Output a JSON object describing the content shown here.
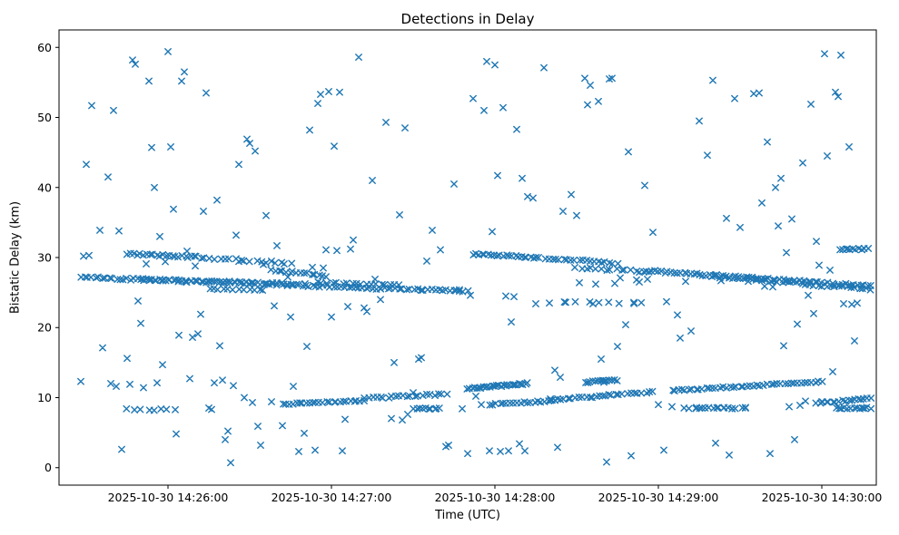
{
  "figure": {
    "title": "Detections in Delay",
    "xlabel": "Time (UTC)",
    "ylabel": "Bistatic Delay (km)"
  },
  "chart_data": {
    "type": "scatter",
    "title": "Detections in Delay",
    "xlabel": "Time (UTC)",
    "ylabel": "Bistatic Delay (km)",
    "marker": "x",
    "marker_color": "#1f77b4",
    "grid": false,
    "legend": "none",
    "x_axis": {
      "unit": "seconds from 2025-10-30 14:25:20 UTC (axis left edge)",
      "range_seconds": [
        0,
        300
      ],
      "ticks": [
        {
          "t": 40,
          "label": "2025-10-30 14:26:00"
        },
        {
          "t": 100,
          "label": "2025-10-30 14:27:00"
        },
        {
          "t": 160,
          "label": "2025-10-30 14:28:00"
        },
        {
          "t": 220,
          "label": "2025-10-30 14:29:00"
        },
        {
          "t": 280,
          "label": "2025-10-30 14:30:00"
        }
      ]
    },
    "y_axis": {
      "range": [
        -2.5,
        62.5
      ],
      "ticks": [
        0,
        10,
        20,
        30,
        40,
        50,
        60
      ]
    },
    "tracks_note": "dense detection streaks: [t_start,t_end,delay_start,delay_end,n_points,jitter_km]",
    "tracks": [
      [
        8,
        118,
        27.2,
        25.6,
        85,
        0.15
      ],
      [
        118,
        150,
        25.6,
        25.2,
        25,
        0.12
      ],
      [
        30,
        90,
        26.9,
        26.2,
        30,
        0.12
      ],
      [
        95,
        125,
        26.4,
        26.0,
        18,
        0.12
      ],
      [
        25,
        50,
        30.5,
        30.1,
        22,
        0.15
      ],
      [
        50,
        85,
        30.0,
        29.2,
        20,
        0.2
      ],
      [
        55,
        75,
        25.5,
        25.4,
        12,
        0.08
      ],
      [
        78,
        98,
        28.2,
        27.4,
        16,
        0.15
      ],
      [
        82,
        112,
        9.1,
        9.5,
        25,
        0.1
      ],
      [
        112,
        142,
        9.9,
        10.5,
        22,
        0.12
      ],
      [
        25,
        42,
        8.3,
        8.3,
        8,
        0.15
      ],
      [
        130,
        140,
        8.45,
        8.45,
        10,
        0.08
      ],
      [
        152,
        175,
        30.5,
        30.0,
        22,
        0.12
      ],
      [
        178,
        205,
        29.9,
        29.2,
        20,
        0.15
      ],
      [
        190,
        215,
        28.6,
        28.0,
        15,
        0.2
      ],
      [
        215,
        298,
        28.1,
        25.9,
        70,
        0.15
      ],
      [
        240,
        298,
        27.3,
        25.5,
        40,
        0.2
      ],
      [
        185,
        215,
        23.6,
        23.5,
        8,
        0.1
      ],
      [
        150,
        172,
        11.3,
        12.0,
        28,
        0.12
      ],
      [
        158,
        182,
        9.0,
        9.6,
        20,
        0.12
      ],
      [
        180,
        200,
        9.7,
        10.2,
        16,
        0.1
      ],
      [
        193,
        205,
        12.2,
        12.5,
        14,
        0.1
      ],
      [
        200,
        218,
        10.3,
        10.8,
        14,
        0.1
      ],
      [
        225,
        280,
        11.0,
        12.3,
        45,
        0.1
      ],
      [
        230,
        252,
        8.5,
        8.5,
        14,
        0.1
      ],
      [
        278,
        298,
        9.2,
        9.9,
        18,
        0.1
      ],
      [
        285,
        298,
        8.5,
        8.5,
        12,
        0.1
      ],
      [
        287,
        297,
        31.2,
        31.2,
        10,
        0.1
      ]
    ],
    "points_note": "isolated detections: [t_seconds, delay_km]",
    "points": [
      [
        8,
        12.3
      ],
      [
        9,
        30.2
      ],
      [
        10,
        43.3
      ],
      [
        11,
        30.3
      ],
      [
        12,
        51.7
      ],
      [
        15,
        33.9
      ],
      [
        16,
        17.1
      ],
      [
        18,
        41.5
      ],
      [
        19,
        12.0
      ],
      [
        20,
        51.0
      ],
      [
        21,
        11.6
      ],
      [
        22,
        33.8
      ],
      [
        23,
        2.6
      ],
      [
        25,
        15.6
      ],
      [
        26,
        11.9
      ],
      [
        27,
        58.2
      ],
      [
        28,
        57.6
      ],
      [
        29,
        23.8
      ],
      [
        30,
        20.6
      ],
      [
        31,
        11.4
      ],
      [
        32,
        29.1
      ],
      [
        33,
        55.2
      ],
      [
        34,
        45.7
      ],
      [
        35,
        40.0
      ],
      [
        36,
        12.1
      ],
      [
        37,
        33.0
      ],
      [
        38,
        14.7
      ],
      [
        39,
        29.4
      ],
      [
        40,
        59.4
      ],
      [
        41,
        45.8
      ],
      [
        42,
        36.9
      ],
      [
        43,
        4.8
      ],
      [
        44,
        18.9
      ],
      [
        45,
        55.2
      ],
      [
        46,
        56.5
      ],
      [
        47,
        30.9
      ],
      [
        48,
        12.7
      ],
      [
        49,
        18.6
      ],
      [
        50,
        28.8
      ],
      [
        51,
        19.1
      ],
      [
        52,
        21.9
      ],
      [
        53,
        36.6
      ],
      [
        54,
        53.5
      ],
      [
        55,
        8.5
      ],
      [
        56,
        8.3
      ],
      [
        57,
        12.1
      ],
      [
        58,
        38.2
      ],
      [
        59,
        17.4
      ],
      [
        60,
        12.5
      ],
      [
        61,
        4.0
      ],
      [
        62,
        5.2
      ],
      [
        63,
        0.7
      ],
      [
        64,
        11.7
      ],
      [
        65,
        33.2
      ],
      [
        66,
        43.3
      ],
      [
        67,
        29.6
      ],
      [
        68,
        10.0
      ],
      [
        69,
        46.9
      ],
      [
        70,
        46.3
      ],
      [
        71,
        9.3
      ],
      [
        72,
        45.2
      ],
      [
        73,
        5.9
      ],
      [
        74,
        3.2
      ],
      [
        75,
        29.0
      ],
      [
        76,
        36.0
      ],
      [
        78,
        9.4
      ],
      [
        79,
        23.1
      ],
      [
        80,
        31.7
      ],
      [
        82,
        6.0
      ],
      [
        84,
        27.2
      ],
      [
        85,
        21.5
      ],
      [
        86,
        11.6
      ],
      [
        88,
        2.3
      ],
      [
        90,
        4.9
      ],
      [
        91,
        17.3
      ],
      [
        92,
        48.2
      ],
      [
        93,
        28.6
      ],
      [
        94,
        2.5
      ],
      [
        95,
        52.0
      ],
      [
        96,
        53.3
      ],
      [
        97,
        28.5
      ],
      [
        98,
        31.1
      ],
      [
        99,
        53.7
      ],
      [
        100,
        21.5
      ],
      [
        101,
        45.9
      ],
      [
        102,
        31.0
      ],
      [
        103,
        53.6
      ],
      [
        104,
        2.4
      ],
      [
        105,
        6.9
      ],
      [
        106,
        23.0
      ],
      [
        107,
        31.2
      ],
      [
        108,
        32.5
      ],
      [
        110,
        58.6
      ],
      [
        112,
        22.8
      ],
      [
        113,
        22.3
      ],
      [
        115,
        41.0
      ],
      [
        116,
        26.9
      ],
      [
        118,
        24.0
      ],
      [
        120,
        49.3
      ],
      [
        122,
        7.0
      ],
      [
        123,
        15.0
      ],
      [
        125,
        36.1
      ],
      [
        126,
        6.8
      ],
      [
        127,
        48.5
      ],
      [
        128,
        7.6
      ],
      [
        130,
        10.7
      ],
      [
        132,
        15.5
      ],
      [
        133,
        15.7
      ],
      [
        135,
        29.5
      ],
      [
        137,
        33.9
      ],
      [
        140,
        31.1
      ],
      [
        142,
        3.0
      ],
      [
        143,
        3.2
      ],
      [
        145,
        40.5
      ],
      [
        147,
        25.4
      ],
      [
        148,
        8.4
      ],
      [
        150,
        2.0
      ],
      [
        151,
        24.6
      ],
      [
        152,
        52.7
      ],
      [
        153,
        10.2
      ],
      [
        155,
        9.0
      ],
      [
        156,
        51.0
      ],
      [
        157,
        58.0
      ],
      [
        158,
        2.4
      ],
      [
        159,
        33.7
      ],
      [
        160,
        57.5
      ],
      [
        161,
        41.7
      ],
      [
        162,
        2.3
      ],
      [
        163,
        51.4
      ],
      [
        164,
        24.5
      ],
      [
        165,
        2.4
      ],
      [
        166,
        20.8
      ],
      [
        167,
        24.4
      ],
      [
        168,
        48.3
      ],
      [
        169,
        3.4
      ],
      [
        170,
        41.3
      ],
      [
        171,
        2.4
      ],
      [
        172,
        38.7
      ],
      [
        174,
        38.5
      ],
      [
        175,
        23.4
      ],
      [
        176,
        30.0
      ],
      [
        178,
        57.1
      ],
      [
        180,
        23.5
      ],
      [
        182,
        13.9
      ],
      [
        183,
        2.9
      ],
      [
        184,
        12.9
      ],
      [
        185,
        36.6
      ],
      [
        186,
        23.6
      ],
      [
        188,
        39.0
      ],
      [
        190,
        36.0
      ],
      [
        191,
        26.4
      ],
      [
        193,
        55.6
      ],
      [
        194,
        51.8
      ],
      [
        195,
        54.6
      ],
      [
        196,
        23.4
      ],
      [
        197,
        26.2
      ],
      [
        198,
        52.3
      ],
      [
        199,
        15.5
      ],
      [
        200,
        12.2
      ],
      [
        201,
        0.8
      ],
      [
        202,
        55.5
      ],
      [
        203,
        55.6
      ],
      [
        204,
        26.3
      ],
      [
        205,
        17.3
      ],
      [
        206,
        27.1
      ],
      [
        208,
        20.4
      ],
      [
        209,
        45.1
      ],
      [
        210,
        1.7
      ],
      [
        211,
        23.6
      ],
      [
        212,
        26.8
      ],
      [
        213,
        26.5
      ],
      [
        215,
        40.3
      ],
      [
        216,
        26.9
      ],
      [
        218,
        33.6
      ],
      [
        220,
        9.0
      ],
      [
        222,
        2.5
      ],
      [
        223,
        23.7
      ],
      [
        225,
        8.7
      ],
      [
        227,
        21.8
      ],
      [
        228,
        18.5
      ],
      [
        230,
        26.6
      ],
      [
        232,
        19.5
      ],
      [
        234,
        8.6
      ],
      [
        235,
        49.5
      ],
      [
        236,
        8.5
      ],
      [
        238,
        44.6
      ],
      [
        240,
        55.3
      ],
      [
        241,
        3.5
      ],
      [
        242,
        8.6
      ],
      [
        243,
        26.7
      ],
      [
        244,
        8.5
      ],
      [
        245,
        35.6
      ],
      [
        246,
        1.8
      ],
      [
        247,
        8.4
      ],
      [
        248,
        52.7
      ],
      [
        250,
        34.3
      ],
      [
        252,
        8.6
      ],
      [
        253,
        26.6
      ],
      [
        255,
        53.4
      ],
      [
        257,
        53.5
      ],
      [
        258,
        37.8
      ],
      [
        259,
        25.9
      ],
      [
        260,
        46.5
      ],
      [
        261,
        2.0
      ],
      [
        262,
        25.8
      ],
      [
        263,
        40.0
      ],
      [
        264,
        34.5
      ],
      [
        265,
        41.3
      ],
      [
        266,
        17.4
      ],
      [
        267,
        30.7
      ],
      [
        268,
        8.7
      ],
      [
        269,
        35.5
      ],
      [
        270,
        4.0
      ],
      [
        271,
        20.5
      ],
      [
        272,
        8.9
      ],
      [
        273,
        43.5
      ],
      [
        274,
        9.5
      ],
      [
        275,
        24.6
      ],
      [
        276,
        51.9
      ],
      [
        277,
        22.0
      ],
      [
        278,
        32.3
      ],
      [
        279,
        28.9
      ],
      [
        280,
        9.4
      ],
      [
        281,
        59.1
      ],
      [
        282,
        44.5
      ],
      [
        283,
        28.2
      ],
      [
        284,
        13.7
      ],
      [
        285,
        53.6
      ],
      [
        286,
        53.0
      ],
      [
        287,
        58.9
      ],
      [
        288,
        23.4
      ],
      [
        289,
        31.2
      ],
      [
        290,
        45.8
      ],
      [
        291,
        23.3
      ],
      [
        292,
        18.1
      ],
      [
        293,
        23.5
      ],
      [
        294,
        8.4
      ],
      [
        295,
        8.5
      ]
    ]
  }
}
